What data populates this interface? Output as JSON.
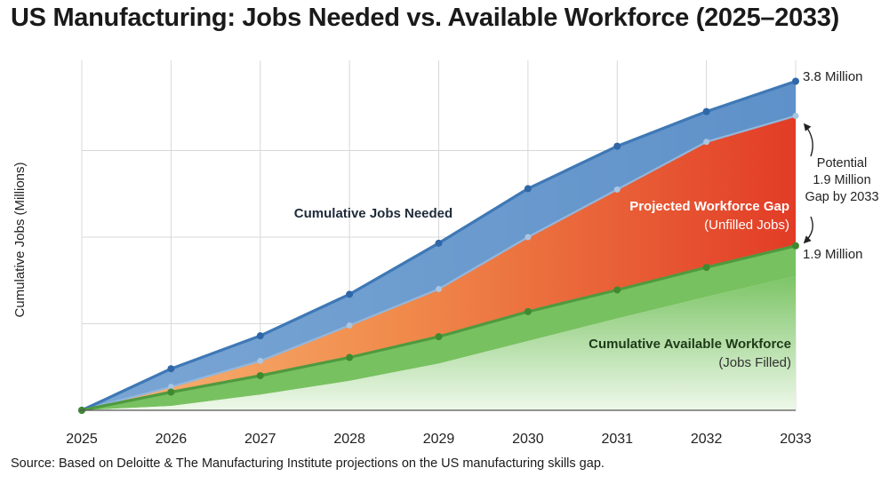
{
  "chart_data": {
    "type": "area",
    "title": "US Manufacturing: Jobs Needed vs. Available Workforce (2025–2033)",
    "ylabel": "Cumulative Jobs (Millions)",
    "xlabel": "",
    "x": [
      "2025",
      "2026",
      "2027",
      "2028",
      "2029",
      "2030",
      "2031",
      "2032",
      "2033"
    ],
    "ylim": [
      0,
      4.0
    ],
    "grid": true,
    "series": [
      {
        "key": "needed",
        "values": [
          0.0,
          0.48,
          0.86,
          1.34,
          1.93,
          2.56,
          3.05,
          3.45,
          3.8
        ],
        "color": "#3f78b5"
      },
      {
        "key": "needed_inner",
        "values": [
          0.0,
          0.27,
          0.57,
          0.98,
          1.4,
          2.0,
          2.55,
          3.1,
          3.4
        ],
        "color": "#7ea7d0"
      },
      {
        "key": "available",
        "values": [
          0.0,
          0.21,
          0.4,
          0.61,
          0.85,
          1.14,
          1.39,
          1.65,
          1.9
        ],
        "color": "#4f9a3f"
      },
      {
        "key": "available_lower",
        "values": [
          0.0,
          0.05,
          0.18,
          0.34,
          0.54,
          0.8,
          1.06,
          1.31,
          1.55
        ],
        "color": "#8fcf7a"
      }
    ],
    "annotations": {
      "needed_label": "Cumulative Jobs Needed",
      "gap_label_1": "Projected Workforce Gap",
      "gap_label_2": "(Unfilled Jobs)",
      "available_label_1": "Cumulative Available Workforce",
      "available_label_2": "(Jobs Filled)",
      "end_needed": "3.8 Million",
      "end_available": "1.9 Million",
      "gap_note_1": "Potential",
      "gap_note_2": "1.9 Million",
      "gap_note_3": "Gap by 2033"
    },
    "colors": {
      "gap_light": "#f6b170",
      "gap_dark": "#e4452a",
      "grid": "#d8d8d8",
      "axis": "#444444"
    }
  },
  "footer": {
    "source": "Source: Based on Deloitte & The Manufacturing Institute projections on the US manufacturing skills gap."
  }
}
